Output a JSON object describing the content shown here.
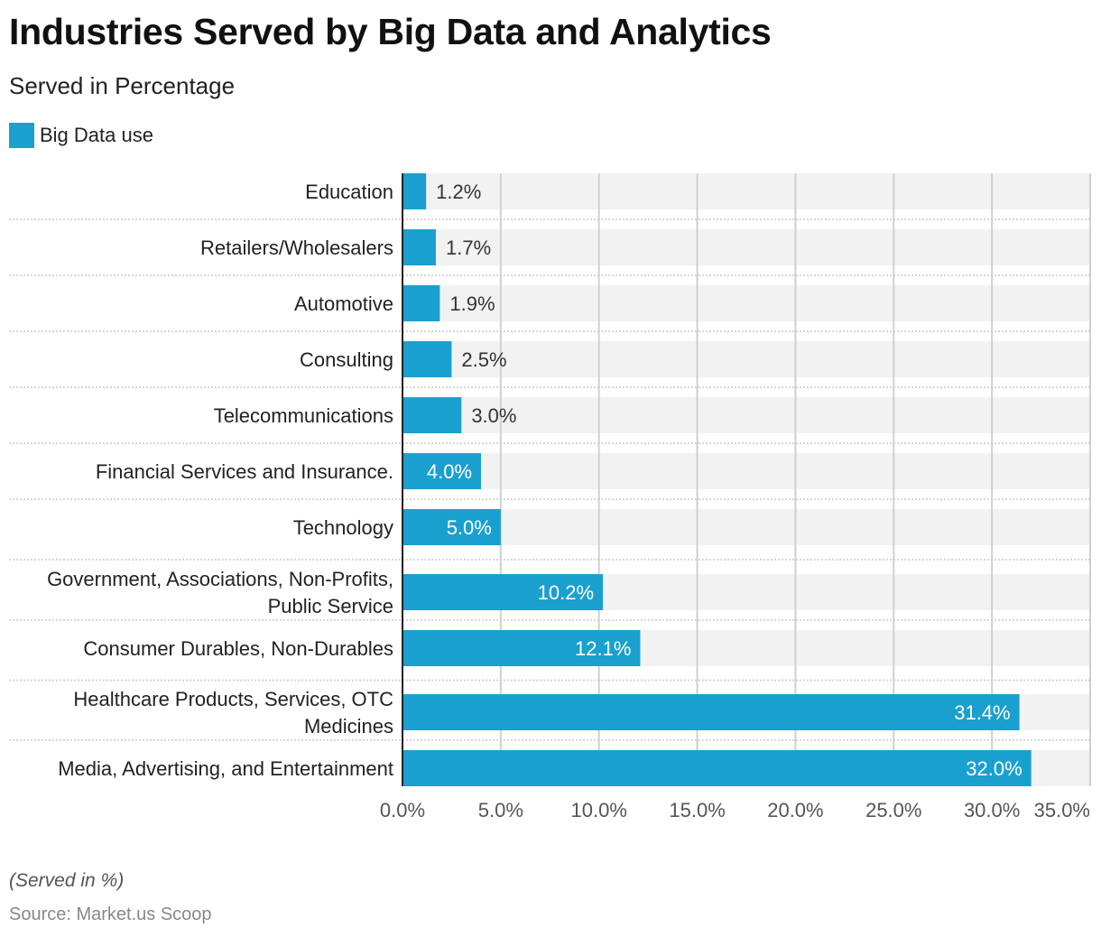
{
  "header": {
    "title": "Industries Served by Big Data and Analytics",
    "subtitle": "Served in Percentage"
  },
  "footer": {
    "note": "(Served in %)",
    "source": "Source: Market.us Scoop"
  },
  "colors": {
    "bar": "#1aa0cf",
    "track": "#f2f2f2",
    "grid": "#d0d0d0",
    "axis": "#222222",
    "separator": "#c8c8c8",
    "label_inside": "#ffffff",
    "label_outside": "#333333",
    "tick": "#555555"
  },
  "chart_data": {
    "type": "bar",
    "orientation": "horizontal",
    "title": "Industries Served by Big Data and Analytics",
    "subtitle": "Served in Percentage",
    "legend": {
      "placement": "top-left",
      "entries": [
        "Big Data use"
      ]
    },
    "categories": [
      [
        "Education"
      ],
      [
        "Retailers/Wholesalers"
      ],
      [
        "Automotive"
      ],
      [
        "Consulting"
      ],
      [
        "Telecommunications"
      ],
      [
        "Financial Services and Insurance."
      ],
      [
        "Technology"
      ],
      [
        "Government, Associations, Non-Profits,",
        "Public Service"
      ],
      [
        "Consumer Durables, Non-Durables"
      ],
      [
        "Healthcare Products, Services, OTC",
        "Medicines"
      ],
      [
        "Media, Advertising, and Entertainment"
      ]
    ],
    "series": [
      {
        "name": "Big Data use",
        "values": [
          1.2,
          1.7,
          1.9,
          2.5,
          3.0,
          4.0,
          5.0,
          10.2,
          12.1,
          31.4,
          32.0
        ],
        "labels": [
          "1.2%",
          "1.7%",
          "1.9%",
          "2.5%",
          "3.0%",
          "4.0%",
          "5.0%",
          "10.2%",
          "12.1%",
          "31.4%",
          "32.0%"
        ]
      }
    ],
    "xlim": [
      0,
      35
    ],
    "xticks": [
      0,
      5,
      10,
      15,
      20,
      25,
      30,
      35
    ],
    "xtick_labels": [
      "0.0%",
      "5.0%",
      "10.0%",
      "15.0%",
      "20.0%",
      "25.0%",
      "30.0%",
      "35.0%"
    ],
    "grid": true
  }
}
